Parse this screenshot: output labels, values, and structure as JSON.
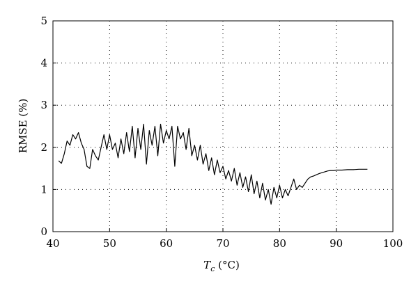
{
  "chart_data": {
    "type": "line",
    "xlabel_var": "T",
    "xlabel_sub": "c",
    "xlabel_unit": " (°C)",
    "ylabel": "RMSE (%)",
    "xlim": [
      40,
      100
    ],
    "ylim": [
      0,
      5
    ],
    "x_ticks": [
      40,
      50,
      60,
      70,
      80,
      90,
      100
    ],
    "y_ticks": [
      0,
      1,
      2,
      3,
      4,
      5
    ],
    "grid": "dotted",
    "legend": "none",
    "line_color": "#000000",
    "series": [
      {
        "x": [
          41.0,
          41.5,
          42.0,
          42.5,
          43.0,
          43.5,
          44.0,
          44.5,
          45.0,
          45.5,
          46.0,
          46.5,
          47.0,
          47.5,
          48.0,
          48.5,
          49.0,
          49.5,
          50.0,
          50.5,
          51.0,
          51.5,
          52.0,
          52.5,
          53.0,
          53.5,
          54.0,
          54.5,
          55.0,
          55.5,
          56.0,
          56.5,
          57.0,
          57.5,
          58.0,
          58.5,
          59.0,
          59.5,
          60.0,
          60.5,
          61.0,
          61.5,
          62.0,
          62.5,
          63.0,
          63.5,
          64.0,
          64.5,
          65.0,
          65.5,
          66.0,
          66.5,
          67.0,
          67.5,
          68.0,
          68.5,
          69.0,
          69.5,
          70.0,
          70.5,
          71.0,
          71.5,
          72.0,
          72.5,
          73.0,
          73.5,
          74.0,
          74.5,
          75.0,
          75.5,
          76.0,
          76.5,
          77.0,
          77.5,
          78.0,
          78.5,
          79.0,
          79.5,
          80.0,
          80.5,
          81.0,
          81.5,
          82.0,
          82.5,
          83.0,
          83.5,
          84.0,
          84.5,
          85.0,
          85.5,
          86.0,
          86.5,
          87.0,
          87.5,
          88.0,
          88.5,
          89.0,
          89.5,
          90.0,
          91.0,
          92.0,
          93.0,
          94.0,
          95.0,
          95.5
        ],
        "y": [
          1.68,
          1.62,
          1.85,
          2.15,
          2.05,
          2.3,
          2.2,
          2.35,
          2.1,
          1.95,
          1.55,
          1.5,
          1.95,
          1.8,
          1.7,
          2.0,
          2.3,
          1.95,
          2.3,
          1.95,
          2.1,
          1.75,
          2.2,
          1.85,
          2.35,
          1.9,
          2.5,
          1.75,
          2.45,
          1.95,
          2.55,
          1.6,
          2.4,
          2.05,
          2.5,
          1.8,
          2.55,
          2.1,
          2.4,
          2.2,
          2.5,
          1.55,
          2.5,
          2.2,
          2.35,
          1.95,
          2.45,
          1.8,
          2.05,
          1.7,
          2.05,
          1.6,
          1.85,
          1.45,
          1.75,
          1.35,
          1.7,
          1.4,
          1.55,
          1.25,
          1.45,
          1.2,
          1.5,
          1.1,
          1.4,
          1.05,
          1.3,
          0.95,
          1.35,
          0.9,
          1.2,
          0.8,
          1.15,
          0.75,
          1.0,
          0.65,
          1.05,
          0.8,
          1.1,
          0.8,
          1.0,
          0.85,
          1.05,
          1.25,
          1.0,
          1.1,
          1.05,
          1.15,
          1.25,
          1.3,
          1.32,
          1.35,
          1.38,
          1.4,
          1.42,
          1.44,
          1.45,
          1.45,
          1.46,
          1.46,
          1.47,
          1.47,
          1.48,
          1.48,
          1.48
        ]
      }
    ]
  }
}
